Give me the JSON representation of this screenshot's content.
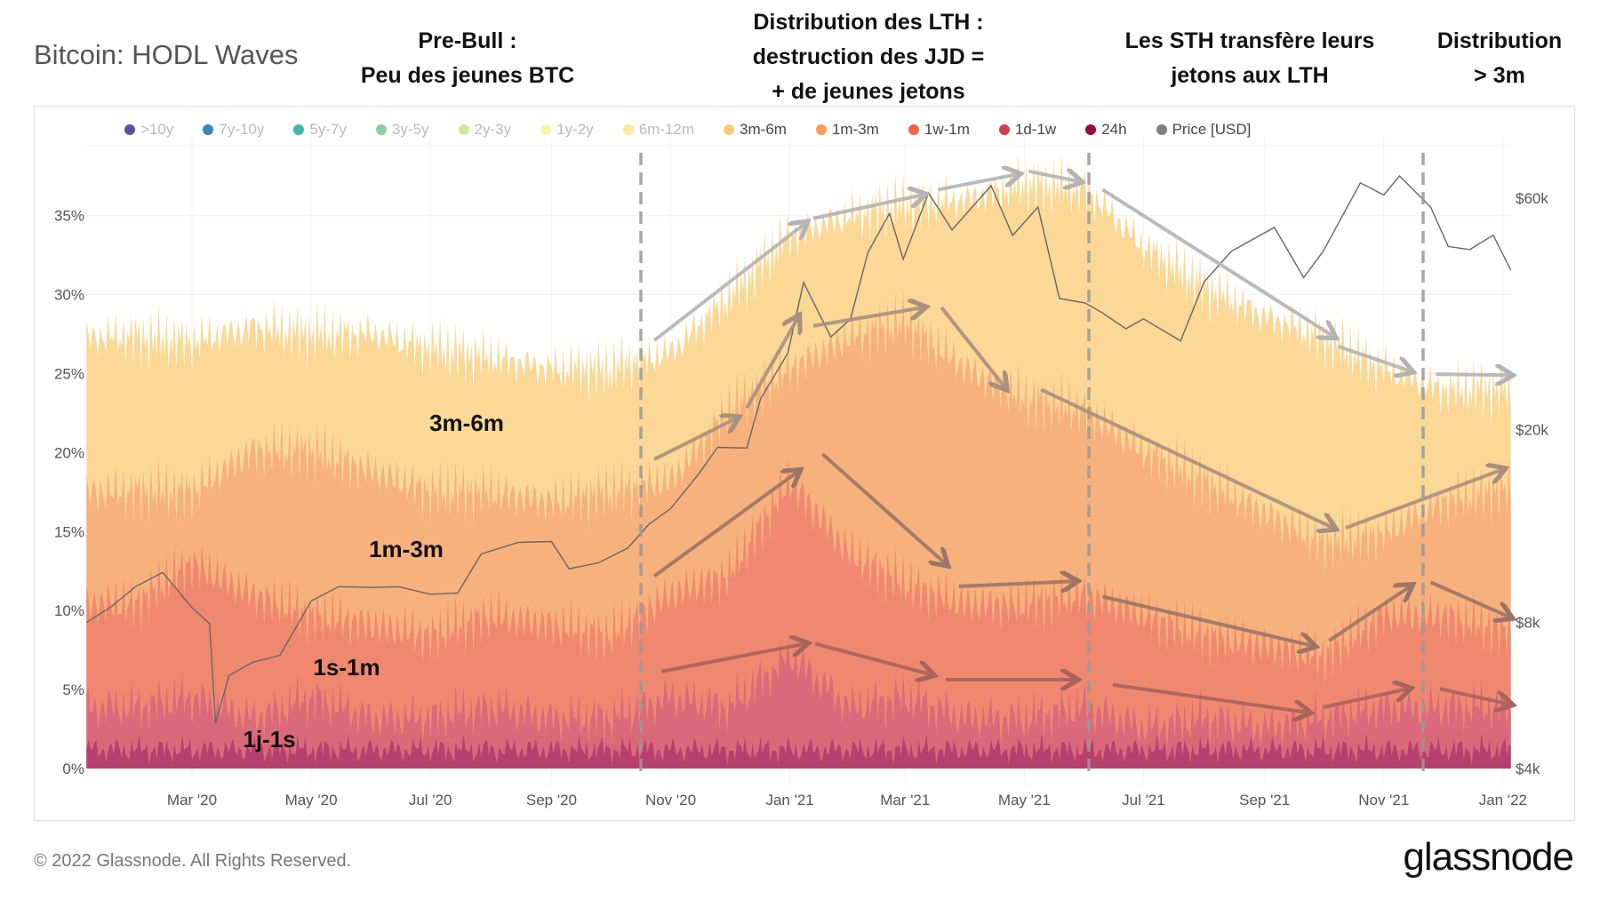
{
  "title": "Bitcoin: HODL Waves",
  "annotations": {
    "prebull": [
      "Pre-Bull :",
      "Peu des jeunes BTC"
    ],
    "lth": [
      "Distribution des LTH :",
      "destruction des JJD =",
      "+ de jeunes jetons"
    ],
    "sth": [
      "Les STH transfère leurs",
      "jetons aux LTH"
    ],
    "dist3m": [
      "Distribution",
      "> 3m"
    ]
  },
  "legend": [
    {
      "label": ">10y",
      "color": "#5e4fa2",
      "active": false
    },
    {
      "label": "7y-10y",
      "color": "#3288bd",
      "active": false
    },
    {
      "label": "5y-7y",
      "color": "#45b5a6",
      "active": false
    },
    {
      "label": "3y-5y",
      "color": "#8fd19e",
      "active": false
    },
    {
      "label": "2y-3y",
      "color": "#cdea9a",
      "active": false
    },
    {
      "label": "1y-2y",
      "color": "#f4f9a6",
      "active": false
    },
    {
      "label": "6m-12m",
      "color": "#fee89a",
      "active": false
    },
    {
      "label": "3m-6m",
      "color": "#fdc877",
      "active": true
    },
    {
      "label": "1m-3m",
      "color": "#fb9d59",
      "active": true
    },
    {
      "label": "1w-1m",
      "color": "#f0663f",
      "active": true
    },
    {
      "label": "1d-1w",
      "color": "#d53e4f",
      "active": true
    },
    {
      "label": "24h",
      "color": "#9e0142",
      "active": true
    },
    {
      "label": "Price [USD]",
      "color": "#808080",
      "active": true
    }
  ],
  "band_labels": {
    "b3m6m": "3m-6m",
    "b1m3m": "1m-3m",
    "b1s1m": "1s-1m",
    "b1j1s": "1j-1s"
  },
  "footer": {
    "copyright": "© 2022 Glassnode. All Rights Reserved.",
    "logo": "glassnode",
    "watermark": "glassnode"
  },
  "chart_data": {
    "type": "area",
    "stacked": true,
    "title": "Bitcoin: HODL Waves",
    "y_left": {
      "ticks": [
        "0%",
        "5%",
        "10%",
        "15%",
        "20%",
        "25%",
        "30%",
        "35%"
      ],
      "range": [
        0,
        40
      ]
    },
    "y_right": {
      "scale": "log",
      "ticks": [
        "$4k",
        "$8k",
        "$20k",
        "$60k"
      ],
      "tick_values": [
        4000,
        8000,
        20000,
        60000
      ]
    },
    "x_ticks": [
      {
        "label": "Mar '20",
        "date": "2020-03-01"
      },
      {
        "label": "May '20",
        "date": "2020-05-01"
      },
      {
        "label": "Jul '20",
        "date": "2020-07-01"
      },
      {
        "label": "Sep '20",
        "date": "2020-09-01"
      },
      {
        "label": "Nov '20",
        "date": "2020-11-01"
      },
      {
        "label": "Jan '21",
        "date": "2021-01-01"
      },
      {
        "label": "Mar '21",
        "date": "2021-03-01"
      },
      {
        "label": "May '21",
        "date": "2021-05-01"
      },
      {
        "label": "Jul '21",
        "date": "2021-07-01"
      },
      {
        "label": "Sep '21",
        "date": "2021-09-01"
      },
      {
        "label": "Nov '21",
        "date": "2021-11-01"
      },
      {
        "label": "Jan '22",
        "date": "2022-01-01"
      }
    ],
    "grid": true,
    "legend_position": "top",
    "dates": [
      "2020-02-01",
      "2020-03-01",
      "2020-04-01",
      "2020-05-01",
      "2020-06-01",
      "2020-07-01",
      "2020-08-01",
      "2020-09-01",
      "2020-10-01",
      "2020-11-01",
      "2020-12-01",
      "2021-01-01",
      "2021-02-01",
      "2021-03-01",
      "2021-04-01",
      "2021-05-01",
      "2021-06-01",
      "2021-07-01",
      "2021-08-01",
      "2021-09-01",
      "2021-10-01",
      "2021-11-01",
      "2021-12-01",
      "2022-01-01"
    ],
    "series": [
      {
        "name": "24h",
        "color": "#b8406f",
        "values": [
          1.2,
          1.2,
          1.2,
          1.2,
          1.2,
          1.2,
          1.2,
          1.2,
          1.2,
          1.2,
          1.2,
          1.2,
          1.2,
          1.2,
          1.2,
          1.2,
          1.2,
          1.2,
          1.2,
          1.2,
          1.2,
          1.2,
          1.2,
          1.2
        ]
      },
      {
        "name": "1d-1w",
        "color": "#da6a79",
        "values": [
          2.7,
          3.3,
          2.0,
          3.3,
          2.0,
          2.0,
          2.7,
          2.0,
          2.0,
          3.3,
          2.7,
          5.9,
          2.7,
          3.3,
          2.0,
          2.0,
          2.7,
          1.4,
          2.0,
          1.4,
          2.0,
          2.7,
          2.7,
          2.7
        ]
      },
      {
        "name": "1w-1m",
        "color": "#f08870",
        "values": [
          6.5,
          8.5,
          7.8,
          5.2,
          5.9,
          5.2,
          5.8,
          5.9,
          5.2,
          6.5,
          8.4,
          11.1,
          9.7,
          7.2,
          7.2,
          7.2,
          7.1,
          7.1,
          5.2,
          5.2,
          3.9,
          5.8,
          5.8,
          4.9
        ]
      },
      {
        "name": "1m-3m",
        "color": "#f7b17c",
        "values": [
          7.1,
          4.5,
          9.1,
          10.4,
          9.7,
          9.1,
          7.8,
          7.8,
          9.1,
          7.2,
          10.4,
          7.1,
          13.7,
          16.5,
          14.9,
          13.0,
          11.7,
          10.4,
          9.8,
          8.4,
          7.2,
          5.2,
          7.2,
          8.9
        ]
      },
      {
        "name": "3m-6m",
        "color": "#fcd896",
        "values": [
          9.8,
          9.5,
          7.8,
          7.4,
          8.7,
          9.1,
          8.5,
          8.4,
          7.8,
          8.1,
          7.2,
          8.5,
          7.7,
          7.5,
          10.7,
          13.6,
          14.0,
          12.9,
          12.3,
          12.4,
          13.0,
          10.4,
          7.1,
          6.3
        ]
      }
    ],
    "price": {
      "name": "Price [USD]",
      "color": "#666666",
      "points": [
        [
          "2020-01-07",
          8000
        ],
        [
          "2020-01-20",
          8700
        ],
        [
          "2020-02-01",
          9400
        ],
        [
          "2020-02-15",
          10200
        ],
        [
          "2020-03-01",
          8600
        ],
        [
          "2020-03-10",
          7900
        ],
        [
          "2020-03-13",
          5000
        ],
        [
          "2020-03-20",
          6200
        ],
        [
          "2020-04-01",
          6600
        ],
        [
          "2020-04-15",
          6900
        ],
        [
          "2020-05-01",
          8800
        ],
        [
          "2020-05-15",
          9500
        ],
        [
          "2020-06-01",
          9500
        ],
        [
          "2020-06-15",
          9400
        ],
        [
          "2020-07-01",
          9200
        ],
        [
          "2020-07-15",
          9200
        ],
        [
          "2020-07-27",
          11000
        ],
        [
          "2020-08-15",
          11800
        ],
        [
          "2020-09-01",
          11700
        ],
        [
          "2020-09-10",
          10300
        ],
        [
          "2020-09-25",
          10700
        ],
        [
          "2020-10-10",
          11300
        ],
        [
          "2020-10-21",
          12800
        ],
        [
          "2020-11-01",
          13800
        ],
        [
          "2020-11-15",
          16000
        ],
        [
          "2020-11-25",
          18500
        ],
        [
          "2020-12-10",
          18300
        ],
        [
          "2020-12-17",
          23000
        ],
        [
          "2020-12-31",
          29000
        ],
        [
          "2021-01-08",
          40000
        ],
        [
          "2021-01-22",
          31000
        ],
        [
          "2021-02-01",
          34000
        ],
        [
          "2021-02-10",
          46000
        ],
        [
          "2021-02-21",
          56000
        ],
        [
          "2021-02-28",
          45000
        ],
        [
          "2021-03-13",
          61000
        ],
        [
          "2021-03-25",
          52000
        ],
        [
          "2021-04-14",
          63500
        ],
        [
          "2021-04-25",
          50000
        ],
        [
          "2021-05-08",
          58000
        ],
        [
          "2021-05-19",
          37000
        ],
        [
          "2021-06-01",
          36500
        ],
        [
          "2021-06-10",
          35000
        ],
        [
          "2021-06-22",
          32000
        ],
        [
          "2021-07-01",
          34000
        ],
        [
          "2021-07-20",
          30500
        ],
        [
          "2021-08-01",
          40000
        ],
        [
          "2021-08-15",
          47000
        ],
        [
          "2021-09-06",
          52000
        ],
        [
          "2021-09-21",
          41000
        ],
        [
          "2021-10-01",
          47000
        ],
        [
          "2021-10-20",
          64000
        ],
        [
          "2021-11-01",
          61000
        ],
        [
          "2021-11-09",
          67000
        ],
        [
          "2021-11-25",
          57000
        ],
        [
          "2021-12-04",
          48000
        ],
        [
          "2021-12-15",
          47000
        ],
        [
          "2021-12-27",
          50000
        ],
        [
          "2022-01-05",
          43000
        ]
      ]
    }
  }
}
